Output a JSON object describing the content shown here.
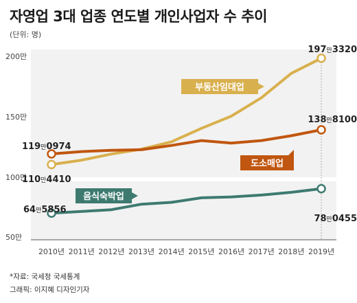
{
  "title": "자영업 3대 업종 연도별 개인사업자 수 추이",
  "unit_note": "(단위: 명)",
  "source": "*자료: 국세청 국세통계",
  "credit": "그래픽: 이지혜 디자인기자",
  "chart_data": {
    "type": "line",
    "categories": [
      "2010년",
      "2011년",
      "2012년",
      "2013년",
      "2014년",
      "2015년",
      "2016년",
      "2017년",
      "2018년",
      "2019년"
    ],
    "y_ticks": [
      "200만",
      "150만",
      "100만",
      "50만"
    ],
    "ylim": [
      50,
      205
    ],
    "grid": false,
    "series": [
      {
        "name": "부동산임대업",
        "color": "#d9b04e",
        "values": [
          110.4,
          114,
          119,
          123,
          129,
          140,
          150,
          165,
          185,
          197.3
        ],
        "start_label": "110만4410",
        "end_label": "197만3320"
      },
      {
        "name": "도소매업",
        "color": "#c0560f",
        "values": [
          119.1,
          121,
          122,
          122.5,
          126,
          130,
          128,
          130,
          134,
          138.8
        ],
        "start_label": "119만0974",
        "end_label": "138만8100"
      },
      {
        "name": "음식숙박업",
        "color": "#3e7a70",
        "values": [
          64.6,
          65.5,
          66.5,
          69.5,
          70.5,
          73,
          73.5,
          74.5,
          76,
          78.0
        ],
        "start_label": "64만5856",
        "end_label": "78만0455"
      }
    ]
  }
}
